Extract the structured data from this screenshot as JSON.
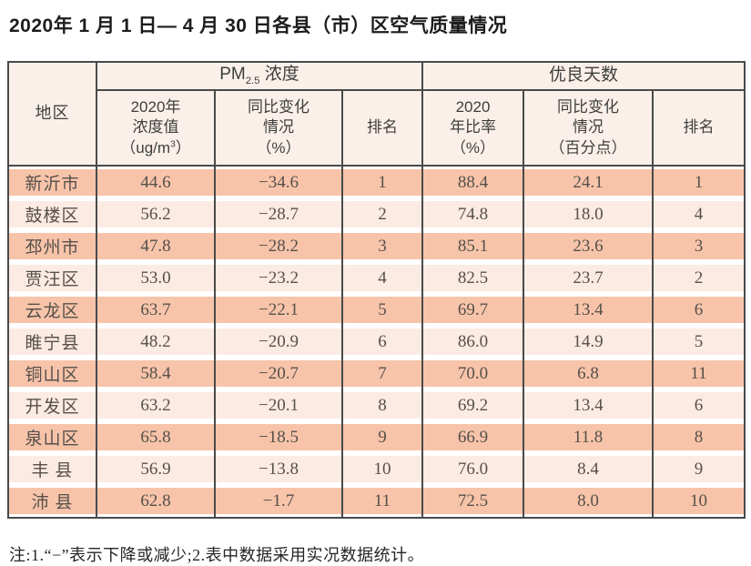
{
  "title": "2020年 1 月 1 日— 4 月 30 日各县（市）区空气质量情况",
  "table": {
    "header": {
      "region": "地区",
      "pm_group": {
        "prefix": "PM",
        "sub": "2.5",
        "label": " 浓度"
      },
      "days_group": "优良天数",
      "pm_value": {
        "line1": "2020年",
        "line2": "浓度值",
        "unit_prefix": "（ug/m",
        "unit_sup": "3",
        "unit_suffix": "）"
      },
      "pm_change": {
        "line1": "同比变化",
        "line2": "情况",
        "line3": "（%）"
      },
      "pm_rank": "排名",
      "days_ratio": {
        "line1": "2020",
        "line2": "年比率",
        "line3": "（%）"
      },
      "days_change": {
        "line1": "同比变化",
        "line2": "情况",
        "line3": "（百分点）"
      },
      "days_rank": "排名"
    },
    "rows": [
      [
        "新沂市",
        "44.6",
        "−34.6",
        "1",
        "88.4",
        "24.1",
        "1"
      ],
      [
        "鼓楼区",
        "56.2",
        "−28.7",
        "2",
        "74.8",
        "18.0",
        "4"
      ],
      [
        "邳州市",
        "47.8",
        "−28.2",
        "3",
        "85.1",
        "23.6",
        "3"
      ],
      [
        "贾汪区",
        "53.0",
        "−23.2",
        "4",
        "82.5",
        "23.7",
        "2"
      ],
      [
        "云龙区",
        "63.7",
        "−22.1",
        "5",
        "69.7",
        "13.4",
        "6"
      ],
      [
        "睢宁县",
        "48.2",
        "−20.9",
        "6",
        "86.0",
        "14.9",
        "5"
      ],
      [
        "铜山区",
        "58.4",
        "−20.7",
        "7",
        "70.0",
        "6.8",
        "11"
      ],
      [
        "开发区",
        "63.2",
        "−20.1",
        "8",
        "69.2",
        "13.4",
        "6"
      ],
      [
        "泉山区",
        "65.8",
        "−18.5",
        "9",
        "66.9",
        "11.8",
        "8"
      ],
      [
        "丰 县",
        "56.9",
        "−13.8",
        "10",
        "76.0",
        "8.4",
        "9"
      ],
      [
        "沛 县",
        "62.8",
        "−1.7",
        "11",
        "72.5",
        "8.0",
        "10"
      ]
    ]
  },
  "note": "注:1.“−”表示下降或减少;2.表中数据采用实况数据统计。",
  "colors": {
    "row_odd": "#f7c4aa",
    "row_even": "#fcebe2",
    "header_bg": "#fbf0e9",
    "border": "#4a4a4a"
  }
}
